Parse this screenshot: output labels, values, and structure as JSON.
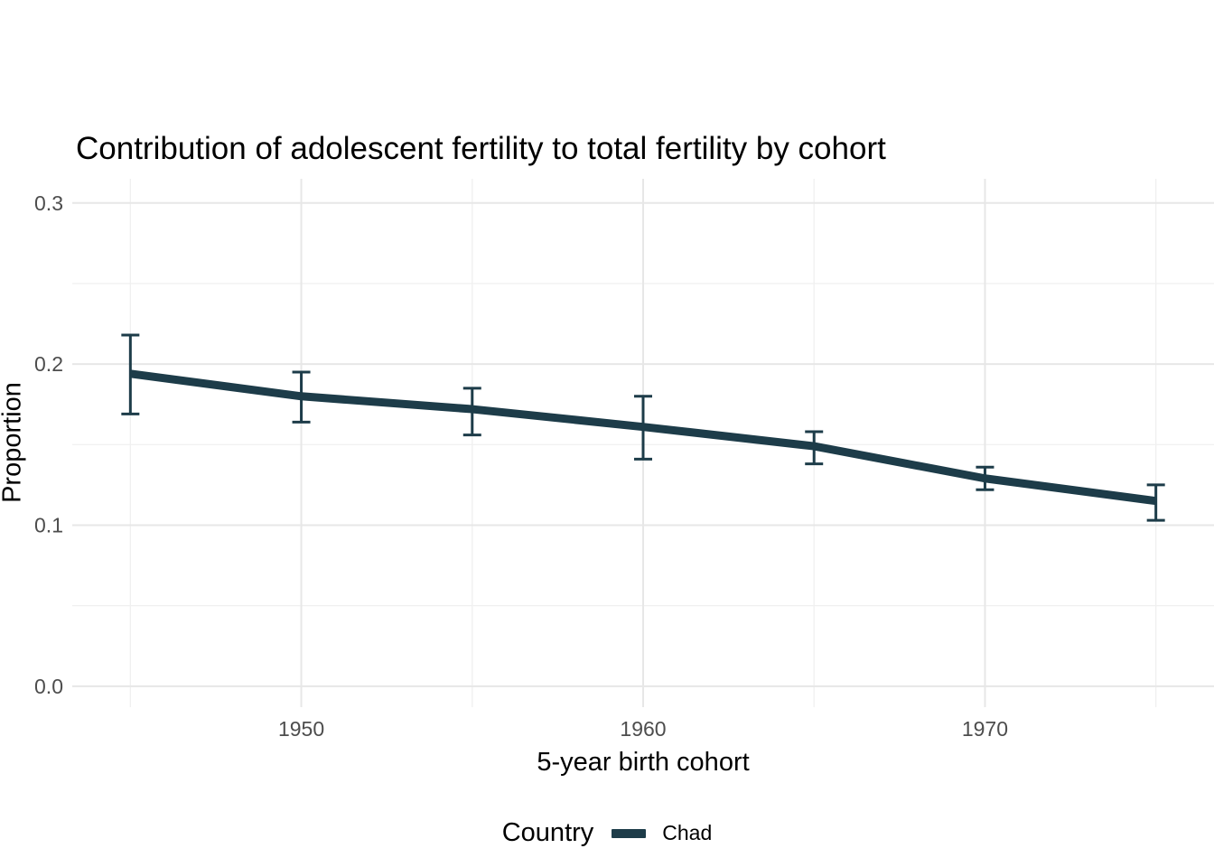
{
  "chart_data": {
    "type": "line",
    "title": "Contribution of adolescent fertility to total fertility by cohort",
    "xlabel": "5-year birth cohort",
    "ylabel": "Proportion",
    "x": [
      1945,
      1950,
      1955,
      1960,
      1965,
      1970,
      1975
    ],
    "series": [
      {
        "name": "Chad",
        "values": [
          0.194,
          0.18,
          0.172,
          0.161,
          0.149,
          0.129,
          0.115
        ],
        "ci_lower": [
          0.169,
          0.164,
          0.156,
          0.141,
          0.138,
          0.122,
          0.103
        ],
        "ci_upper": [
          0.218,
          0.195,
          0.185,
          0.18,
          0.158,
          0.136,
          0.125
        ],
        "color": "#1d3c49"
      }
    ],
    "x_ticks": {
      "values": [
        1950,
        1960,
        1970
      ],
      "labels": [
        "1950",
        "1960",
        "1970"
      ]
    },
    "y_ticks": {
      "values": [
        0.0,
        0.1,
        0.2,
        0.3
      ],
      "labels": [
        "0.0",
        "0.1",
        "0.2",
        "0.3"
      ]
    },
    "x_minor": [
      1945,
      1955,
      1965,
      1975
    ],
    "y_minor": [
      0.05,
      0.15,
      0.25
    ],
    "xlim": [
      1943.3,
      1976.7
    ],
    "ylim": [
      -0.013,
      0.315
    ],
    "grid": true,
    "legend": {
      "title": "Country",
      "position": "bottom",
      "entries": [
        {
          "label": "Chad",
          "color": "#1d3c49"
        }
      ]
    },
    "colors": {
      "grid_major": "#e7e7e7",
      "grid_minor": "#f0f0f0",
      "tick_label": "#4d4d4d",
      "text": "#000000",
      "background": "#ffffff"
    }
  }
}
